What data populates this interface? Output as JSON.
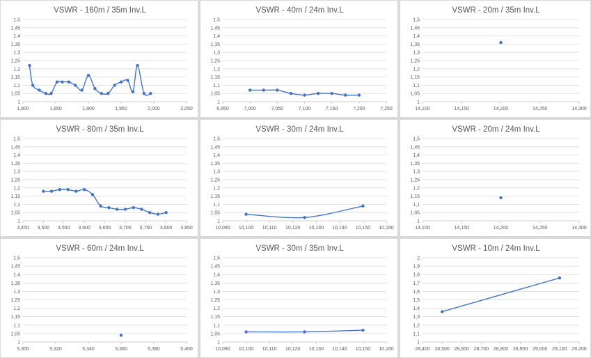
{
  "chart_data": [
    {
      "type": "line",
      "title": "VSWR - 160m / 35m Inv.L",
      "xlim": [
        1800,
        2050
      ],
      "xticks": [
        1800,
        1850,
        1900,
        1950,
        2000,
        2050
      ],
      "xtick_labels": [
        "1,800",
        "1,850",
        "1,900",
        "1,950",
        "2,000",
        "2,050"
      ],
      "ylim": [
        1,
        1.5
      ],
      "yticks": [
        1,
        1.05,
        1.1,
        1.15,
        1.2,
        1.25,
        1.3,
        1.35,
        1.4,
        1.45,
        1.5
      ],
      "ytick_labels": [
        "1",
        "1,05",
        "1,1",
        "1,15",
        "1,2",
        "1,25",
        "1,3",
        "1,35",
        "1,4",
        "1,45",
        "1,5"
      ],
      "grid": true,
      "smooth": true,
      "series": [
        {
          "x": [
            1810,
            1815,
            1825,
            1835,
            1843,
            1852,
            1860,
            1870,
            1880,
            1890,
            1900,
            1910,
            1920,
            1930,
            1940,
            1950,
            1960,
            1968,
            1975,
            1985,
            1995
          ],
          "y": [
            1.22,
            1.1,
            1.07,
            1.05,
            1.05,
            1.12,
            1.12,
            1.12,
            1.1,
            1.07,
            1.16,
            1.08,
            1.05,
            1.05,
            1.1,
            1.12,
            1.13,
            1.06,
            1.22,
            1.05,
            1.05
          ]
        }
      ]
    },
    {
      "type": "line",
      "title": "VSWR - 40m / 24m Inv.L",
      "xlim": [
        6950,
        7250
      ],
      "xticks": [
        6950,
        7000,
        7050,
        7100,
        7150,
        7200,
        7250
      ],
      "xtick_labels": [
        "6,950",
        "7,000",
        "7,050",
        "7,100",
        "7,150",
        "7,200",
        "7,250"
      ],
      "ylim": [
        1,
        1.5
      ],
      "yticks": [
        1,
        1.05,
        1.1,
        1.15,
        1.2,
        1.25,
        1.3,
        1.35,
        1.4,
        1.45,
        1.5
      ],
      "ytick_labels": [
        "1",
        "1,05",
        "1,1",
        "1,15",
        "1,2",
        "1,25",
        "1,3",
        "1,35",
        "1,4",
        "1,45",
        "1,5"
      ],
      "grid": true,
      "smooth": true,
      "series": [
        {
          "x": [
            7000,
            7025,
            7050,
            7075,
            7100,
            7125,
            7150,
            7175,
            7200
          ],
          "y": [
            1.07,
            1.07,
            1.07,
            1.05,
            1.04,
            1.05,
            1.05,
            1.04,
            1.04
          ]
        }
      ]
    },
    {
      "type": "scatter",
      "title": "VSWR - 20m / 35m Inv.L",
      "xlim": [
        14100,
        14300
      ],
      "xticks": [
        14100,
        14150,
        14200,
        14250,
        14300
      ],
      "xtick_labels": [
        "14,100",
        "14,150",
        "14,200",
        "14,250",
        "14,300"
      ],
      "ylim": [
        1,
        1.5
      ],
      "yticks": [
        1,
        1.05,
        1.1,
        1.15,
        1.2,
        1.25,
        1.3,
        1.35,
        1.4,
        1.45,
        1.5
      ],
      "ytick_labels": [
        "1",
        "1,05",
        "1,1",
        "1,15",
        "1,2",
        "1,25",
        "1,3",
        "1,35",
        "1,4",
        "1,45",
        "1,5"
      ],
      "grid": true,
      "series": [
        {
          "x": [
            14200
          ],
          "y": [
            1.36
          ]
        }
      ]
    },
    {
      "type": "line",
      "title": "VSWR - 80m / 35m Inv.L",
      "xlim": [
        3450,
        3850
      ],
      "xticks": [
        3450,
        3500,
        3550,
        3600,
        3650,
        3700,
        3750,
        3800,
        3850
      ],
      "xtick_labels": [
        "3,450",
        "3,500",
        "3,550",
        "3,600",
        "3,650",
        "3,700",
        "3,750",
        "3,800",
        "3,850"
      ],
      "ylim": [
        1,
        1.5
      ],
      "yticks": [
        1,
        1.05,
        1.1,
        1.15,
        1.2,
        1.25,
        1.3,
        1.35,
        1.4,
        1.45,
        1.5
      ],
      "ytick_labels": [
        "1",
        "1,05",
        "1,1",
        "1,15",
        "1,2",
        "1,25",
        "1,3",
        "1,35",
        "1,4",
        "1,45",
        "1,5"
      ],
      "grid": true,
      "smooth": true,
      "series": [
        {
          "x": [
            3500,
            3520,
            3540,
            3560,
            3580,
            3600,
            3620,
            3640,
            3660,
            3680,
            3700,
            3720,
            3740,
            3760,
            3780,
            3800
          ],
          "y": [
            1.18,
            1.18,
            1.19,
            1.19,
            1.18,
            1.19,
            1.16,
            1.09,
            1.08,
            1.07,
            1.07,
            1.08,
            1.07,
            1.05,
            1.04,
            1.05
          ]
        }
      ]
    },
    {
      "type": "line",
      "title": "VSWR - 30m / 24m Inv.L",
      "xlim": [
        10090,
        10160
      ],
      "xticks": [
        10090,
        10100,
        10110,
        10120,
        10130,
        10140,
        10150,
        10160
      ],
      "xtick_labels": [
        "10,090",
        "10,100",
        "10,110",
        "10,120",
        "10,130",
        "10,140",
        "10,150",
        "10,160"
      ],
      "ylim": [
        1,
        1.5
      ],
      "yticks": [
        1,
        1.05,
        1.1,
        1.15,
        1.2,
        1.25,
        1.3,
        1.35,
        1.4,
        1.45,
        1.5
      ],
      "ytick_labels": [
        "1",
        "1,05",
        "1,1",
        "1,15",
        "1,2",
        "1,25",
        "1,3",
        "1,35",
        "1,4",
        "1,45",
        "1,5"
      ],
      "grid": true,
      "smooth": true,
      "series": [
        {
          "x": [
            10100,
            10125,
            10150
          ],
          "y": [
            1.04,
            1.02,
            1.09
          ]
        }
      ]
    },
    {
      "type": "scatter",
      "title": "VSWR - 20m / 24m Inv.L",
      "xlim": [
        14100,
        14300
      ],
      "xticks": [
        14100,
        14150,
        14200,
        14250,
        14300
      ],
      "xtick_labels": [
        "14,100",
        "14,150",
        "14,200",
        "14,250",
        "14,300"
      ],
      "ylim": [
        1,
        1.5
      ],
      "yticks": [
        1,
        1.05,
        1.1,
        1.15,
        1.2,
        1.25,
        1.3,
        1.35,
        1.4,
        1.45,
        1.5
      ],
      "ytick_labels": [
        "1",
        "1,05",
        "1,1",
        "1,15",
        "1,2",
        "1,25",
        "1,3",
        "1,35",
        "1,4",
        "1,45",
        "1,5"
      ],
      "grid": true,
      "series": [
        {
          "x": [
            14200
          ],
          "y": [
            1.14
          ]
        }
      ]
    },
    {
      "type": "scatter",
      "title": "VSWR - 60m / 24m Inv.L",
      "xlim": [
        5300,
        5400
      ],
      "xticks": [
        5300,
        5320,
        5340,
        5360,
        5380,
        5400
      ],
      "xtick_labels": [
        "5,300",
        "5,320",
        "5,340",
        "5,360",
        "5,380",
        "5,400"
      ],
      "ylim": [
        1,
        1.5
      ],
      "yticks": [
        1,
        1.05,
        1.1,
        1.15,
        1.2,
        1.25,
        1.3,
        1.35,
        1.4,
        1.45,
        1.5
      ],
      "ytick_labels": [
        "1",
        "1,05",
        "1,1",
        "1,15",
        "1,2",
        "1,25",
        "1,3",
        "1,35",
        "1,4",
        "1,45",
        "1,5"
      ],
      "grid": true,
      "series": [
        {
          "x": [
            5360
          ],
          "y": [
            1.04
          ]
        }
      ]
    },
    {
      "type": "line",
      "title": "VSWR - 30m / 35m Inv.L",
      "xlim": [
        10090,
        10160
      ],
      "xticks": [
        10090,
        10100,
        10110,
        10120,
        10130,
        10140,
        10150,
        10160
      ],
      "xtick_labels": [
        "10,090",
        "10,100",
        "10,110",
        "10,120",
        "10,130",
        "10,140",
        "10,150",
        "10,160"
      ],
      "ylim": [
        1,
        1.5
      ],
      "yticks": [
        1,
        1.05,
        1.1,
        1.15,
        1.2,
        1.25,
        1.3,
        1.35,
        1.4,
        1.45,
        1.5
      ],
      "ytick_labels": [
        "1",
        "1,05",
        "1,1",
        "1,15",
        "1,2",
        "1,25",
        "1,3",
        "1,35",
        "1,4",
        "1,45",
        "1,5"
      ],
      "grid": true,
      "smooth": true,
      "series": [
        {
          "x": [
            10100,
            10125,
            10150
          ],
          "y": [
            1.06,
            1.06,
            1.07
          ]
        }
      ]
    },
    {
      "type": "line",
      "title": "VSWR - 10m / 24m Inv.L",
      "xlim": [
        28400,
        29200
      ],
      "xticks": [
        28400,
        28500,
        28600,
        28700,
        28800,
        28900,
        29000,
        29100,
        29200
      ],
      "xtick_labels": [
        "28,400",
        "28,500",
        "28,600",
        "28,700",
        "28,800",
        "28,900",
        "29,000",
        "29,100",
        "29,200"
      ],
      "ylim": [
        1,
        2
      ],
      "yticks": [
        1,
        1.1,
        1.2,
        1.3,
        1.4,
        1.5,
        1.6,
        1.7,
        1.8,
        1.9,
        2
      ],
      "ytick_labels": [
        "1",
        "1,1",
        "1,2",
        "1,3",
        "1,4",
        "1,5",
        "1,6",
        "1,7",
        "1,8",
        "1,9",
        "2"
      ],
      "grid": true,
      "series": [
        {
          "x": [
            28500,
            29100
          ],
          "y": [
            1.36,
            1.76
          ]
        }
      ]
    }
  ],
  "colors": {
    "series": "#4472c4",
    "grid": "#d9d9d9",
    "text": "#595959",
    "background": "#ffffff",
    "gap": "#d9d9d9"
  }
}
